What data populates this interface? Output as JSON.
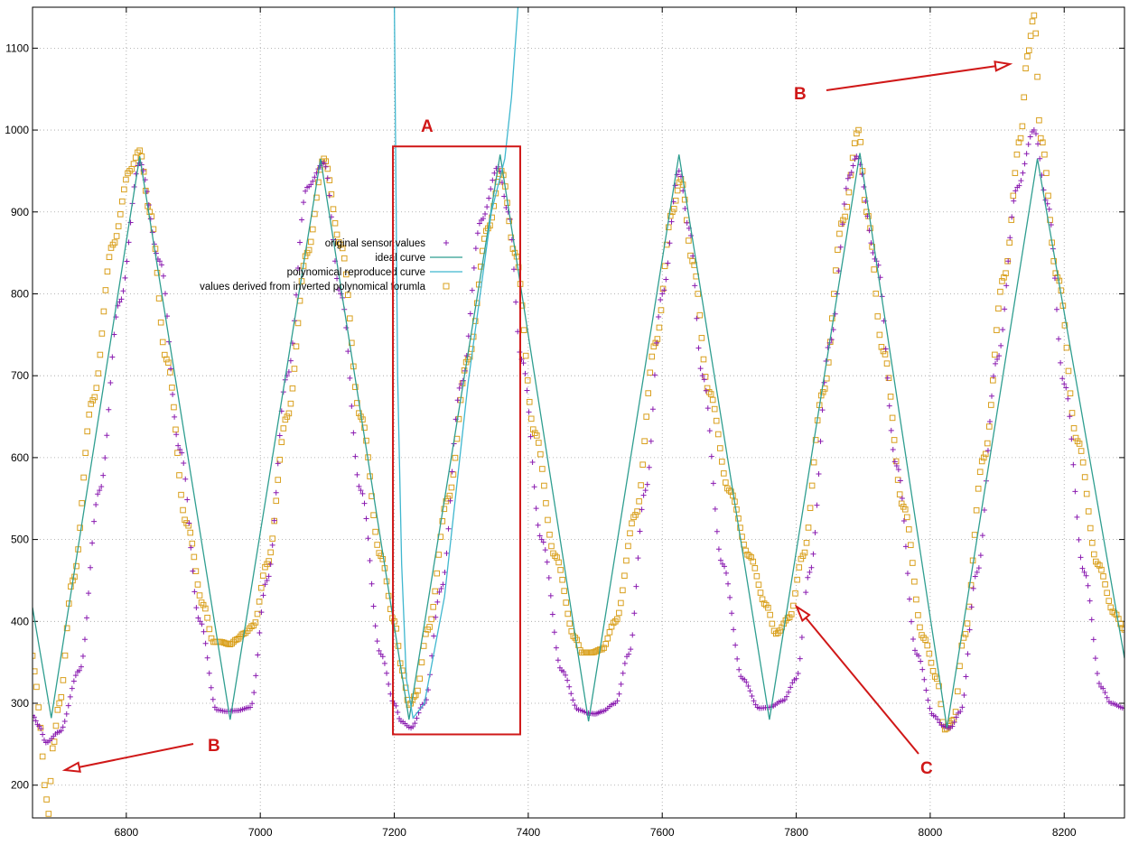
{
  "chart_data": {
    "type": "scatter",
    "title": "",
    "xlabel": "",
    "ylabel": "",
    "xlim": [
      6660,
      8290
    ],
    "ylim": [
      160,
      1150
    ],
    "grid": true,
    "legend_position": "center-left",
    "x_ticks": [
      6800,
      7000,
      7200,
      7400,
      7600,
      7800,
      8000,
      8200
    ],
    "y_ticks": [
      200,
      300,
      400,
      500,
      600,
      700,
      800,
      900,
      1000,
      1100
    ],
    "x_tick_labels": [
      "6800",
      "7000",
      "7200",
      "7400",
      "7600",
      "7800",
      "8000",
      "8200"
    ],
    "y_tick_labels": [
      "200",
      "300",
      "400",
      "500",
      "600",
      "700",
      "800",
      "900",
      "1000",
      "1100"
    ],
    "series": [
      {
        "name": "original sensor values",
        "style": "points-plus",
        "color": "#8a1bb0",
        "x": [
          6660,
          6670,
          6680,
          6700,
          6730,
          6760,
          6790,
          6820,
          6850,
          6880,
          6910,
          6935,
          6950,
          6965,
          6985,
          7010,
          7040,
          7070,
          7095,
          7120,
          7150,
          7180,
          7200,
          7210,
          7225,
          7245,
          7270,
          7300,
          7330,
          7355,
          7370,
          7390,
          7420,
          7450,
          7475,
          7490,
          7500,
          7510,
          7530,
          7550,
          7575,
          7600,
          7625,
          7640,
          7660,
          7690,
          7720,
          7745,
          7760,
          7780,
          7800,
          7820,
          7850,
          7880,
          7890,
          7920,
          7950,
          7980,
          8005,
          8020,
          8030,
          8045,
          8070,
          8100,
          8130,
          8155,
          8175,
          8200,
          8230,
          8255,
          8270,
          8290
        ],
        "y": [
          285,
          272,
          252,
          265,
          340,
          560,
          790,
          960,
          840,
          610,
          400,
          292,
          290,
          291,
          295,
          450,
          700,
          930,
          960,
          800,
          560,
          360,
          300,
          278,
          270,
          300,
          440,
          690,
          890,
          955,
          900,
          720,
          500,
          340,
          292,
          288,
          287,
          290,
          300,
          360,
          560,
          800,
          950,
          880,
          700,
          470,
          330,
          294,
          295,
          303,
          330,
          460,
          740,
          945,
          968,
          840,
          590,
          360,
          285,
          272,
          270,
          290,
          460,
          720,
          930,
          1000,
          910,
          690,
          460,
          320,
          300,
          294
        ]
      },
      {
        "name": "ideal curve",
        "style": "line",
        "color": "#2f9e90",
        "x": [
          6660,
          6688,
          6820,
          6955,
          7090,
          7222,
          7358,
          7490,
          7625,
          7760,
          7895,
          8025,
          8160,
          8290
        ],
        "y": [
          417,
          282,
          968,
          280,
          965,
          280,
          970,
          278,
          970,
          280,
          972,
          270,
          965,
          355
        ]
      },
      {
        "name": "polynomical reproduced curve",
        "style": "line",
        "color": "#3fb7cf",
        "x": [
          7200,
          7205,
          7211,
          7218,
          7228,
          7245,
          7275,
          7310,
          7345,
          7365,
          7375,
          7382,
          7386
        ],
        "y": [
          1165,
          700,
          470,
          330,
          282,
          300,
          430,
          690,
          900,
          965,
          1040,
          1120,
          1165
        ]
      },
      {
        "name": "values derived from inverted polynomical forumla",
        "style": "points-square",
        "color": "#d9a01e",
        "x": [
          6660,
          6666,
          6672,
          6678,
          6684,
          6690,
          6700,
          6720,
          6750,
          6780,
          6805,
          6820,
          6835,
          6860,
          6890,
          6915,
          6930,
          6940,
          6955,
          6965,
          6975,
          6990,
          7010,
          7040,
          7070,
          7095,
          7120,
          7150,
          7180,
          7200,
          7212,
          7222,
          7232,
          7250,
          7280,
          7310,
          7340,
          7360,
          7380,
          7410,
          7440,
          7470,
          7480,
          7495,
          7510,
          7530,
          7560,
          7590,
          7615,
          7628,
          7645,
          7670,
          7700,
          7730,
          7755,
          7770,
          7790,
          7810,
          7840,
          7870,
          7893,
          7905,
          7930,
          7960,
          7990,
          8010,
          8022,
          8035,
          8050,
          8080,
          8110,
          8135,
          8145,
          8155,
          8165,
          8190,
          8220,
          8250,
          8275,
          8290
        ],
        "y": [
          358,
          320,
          270,
          200,
          165,
          245,
          300,
          450,
          670,
          860,
          950,
          975,
          900,
          720,
          520,
          420,
          375,
          375,
          372,
          378,
          385,
          395,
          470,
          650,
          850,
          965,
          860,
          650,
          480,
          400,
          340,
          298,
          310,
          390,
          550,
          720,
          880,
          950,
          850,
          630,
          480,
          380,
          362,
          362,
          366,
          400,
          530,
          740,
          900,
          940,
          840,
          680,
          560,
          480,
          420,
          385,
          405,
          480,
          680,
          890,
          1000,
          900,
          730,
          540,
          380,
          330,
          268,
          280,
          380,
          600,
          820,
          990,
          1090,
          1140,
          990,
          820,
          620,
          470,
          410,
          390
        ]
      }
    ],
    "annotations": {
      "box_label": "A",
      "arrow_label_top": "B",
      "arrow_label_bottom": "B",
      "arrow_label_c": "C"
    }
  },
  "colors": {
    "axis": "#000000",
    "grid": "#a0a0a0",
    "annotation": "#d01818"
  }
}
